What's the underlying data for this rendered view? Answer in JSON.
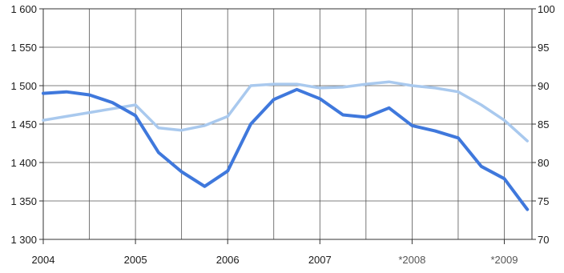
{
  "colors": {
    "series_primary": "#3f78dc",
    "series_secondary": "#a9c9ee",
    "grid": "#555555",
    "frame": "#333333"
  },
  "chart_data": {
    "type": "line",
    "title": "",
    "xlabel": "",
    "ylabel_left": "",
    "ylabel_right": "",
    "grid": true,
    "x_ticks": [
      "2004",
      "2005",
      "2006",
      "2007",
      "*2008",
      "*2009"
    ],
    "x_range": [
      2004,
      2009.3
    ],
    "y_left_range": [
      1300,
      1600
    ],
    "y_left_ticks": [
      "1 300",
      "1 350",
      "1 400",
      "1 450",
      "1 500",
      "1 550",
      "1 600"
    ],
    "y_right_range": [
      70,
      100
    ],
    "y_right_ticks": [
      "70",
      "75",
      "80",
      "85",
      "90",
      "95",
      "100"
    ],
    "x": [
      2004.0,
      2004.25,
      2004.5,
      2004.75,
      2005.0,
      2005.25,
      2005.5,
      2005.75,
      2006.0,
      2006.25,
      2006.5,
      2006.75,
      2007.0,
      2007.25,
      2007.5,
      2007.75,
      2008.0,
      2008.25,
      2008.5,
      2008.75,
      2009.0,
      2009.25
    ],
    "series": [
      {
        "axis": "left",
        "values": [
          1490,
          1492,
          1488,
          1478,
          1461,
          1413,
          1388,
          1369,
          1389,
          1450,
          1482,
          1495,
          1483,
          1462,
          1459,
          1471,
          1448,
          1441,
          1432,
          1395,
          1379,
          1339
        ]
      },
      {
        "axis": "right",
        "values": [
          85.5,
          86.0,
          86.5,
          87.0,
          87.5,
          84.5,
          84.2,
          84.8,
          86.0,
          90.0,
          90.2,
          90.2,
          89.7,
          89.8,
          90.2,
          90.5,
          90.0,
          89.7,
          89.2,
          87.5,
          85.5,
          82.8
        ]
      }
    ]
  }
}
